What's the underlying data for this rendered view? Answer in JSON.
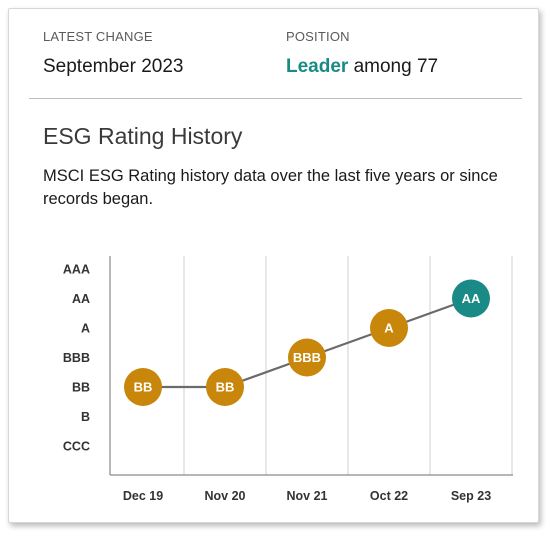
{
  "summary": {
    "latest_change_label": "LATEST CHANGE",
    "latest_change_value": "September 2023",
    "position_label": "POSITION",
    "position_highlight": "Leader",
    "position_rest": " among 77"
  },
  "section": {
    "title": "ESG Rating History",
    "description": "MSCI ESG Rating history data over the last five years or since records began."
  },
  "colors": {
    "accent": "#1a8a86",
    "gold": "#c8860a",
    "line": "#6a6a6a",
    "grid": "#d0d0d0",
    "axis": "#8a8a8a"
  },
  "chart_data": {
    "type": "line",
    "y_categories": [
      "CCC",
      "B",
      "BB",
      "BBB",
      "A",
      "AA",
      "AAA"
    ],
    "categories": [
      "Dec 19",
      "Nov 20",
      "Nov 21",
      "Oct 22",
      "Sep 23"
    ],
    "series": [
      {
        "values": [
          "BB",
          "BB",
          "BBB",
          "A",
          "AA"
        ]
      }
    ],
    "point_colors": [
      "gold",
      "gold",
      "gold",
      "gold",
      "accent"
    ],
    "grid": "vertical"
  }
}
